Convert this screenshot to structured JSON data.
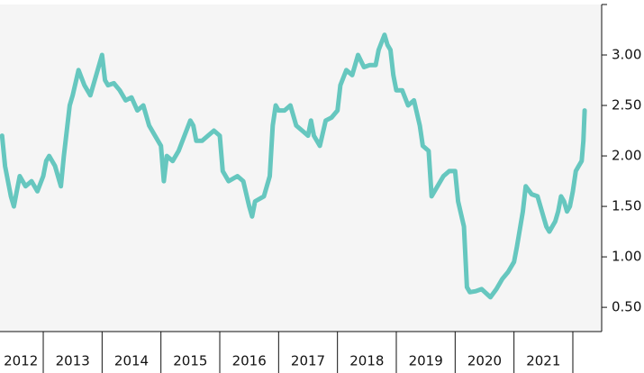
{
  "chart_data": {
    "type": "line",
    "x": [
      2012.3,
      2012.35,
      2012.45,
      2012.5,
      2012.55,
      2012.6,
      2012.7,
      2012.8,
      2012.9,
      2013.0,
      2013.05,
      2013.1,
      2013.2,
      2013.3,
      2013.35,
      2013.45,
      2013.5,
      2013.6,
      2013.7,
      2013.8,
      2013.9,
      2014.0,
      2014.05,
      2014.1,
      2014.2,
      2014.3,
      2014.4,
      2014.5,
      2014.6,
      2014.7,
      2014.8,
      2014.9,
      2015.0,
      2015.05,
      2015.1,
      2015.2,
      2015.3,
      2015.4,
      2015.5,
      2015.55,
      2015.6,
      2015.7,
      2015.8,
      2015.9,
      2016.0,
      2016.05,
      2016.15,
      2016.3,
      2016.4,
      2016.5,
      2016.55,
      2016.6,
      2016.75,
      2016.85,
      2016.9,
      2016.95,
      2017.0,
      2017.1,
      2017.2,
      2017.3,
      2017.4,
      2017.5,
      2017.55,
      2017.6,
      2017.7,
      2017.8,
      2017.9,
      2018.0,
      2018.05,
      2018.15,
      2018.25,
      2018.35,
      2018.45,
      2018.55,
      2018.65,
      2018.7,
      2018.8,
      2018.85,
      2018.9,
      2018.95,
      2019.0,
      2019.1,
      2019.2,
      2019.3,
      2019.4,
      2019.45,
      2019.55,
      2019.6,
      2019.7,
      2019.8,
      2019.9,
      2020.0,
      2020.05,
      2020.15,
      2020.2,
      2020.25,
      2020.35,
      2020.45,
      2020.6,
      2020.7,
      2020.8,
      2020.9,
      2021.0,
      2021.05,
      2021.15,
      2021.2,
      2021.3,
      2021.4,
      2021.5,
      2021.55,
      2021.6,
      2021.7,
      2021.75,
      2021.8,
      2021.85,
      2021.9,
      2021.95,
      2022.0,
      2022.05,
      2022.1,
      2022.15,
      2022.18,
      2022.2
    ],
    "values": [
      2.2,
      1.9,
      1.6,
      1.5,
      1.65,
      1.8,
      1.7,
      1.75,
      1.65,
      1.8,
      1.95,
      2.0,
      1.9,
      1.7,
      2.0,
      2.5,
      2.6,
      2.85,
      2.7,
      2.6,
      2.8,
      3.0,
      2.75,
      2.7,
      2.72,
      2.65,
      2.55,
      2.58,
      2.45,
      2.5,
      2.3,
      2.2,
      2.1,
      1.75,
      2.0,
      1.95,
      2.05,
      2.2,
      2.35,
      2.3,
      2.15,
      2.15,
      2.2,
      2.25,
      2.2,
      1.85,
      1.75,
      1.8,
      1.75,
      1.5,
      1.4,
      1.55,
      1.6,
      1.8,
      2.3,
      2.5,
      2.45,
      2.45,
      2.5,
      2.3,
      2.25,
      2.2,
      2.35,
      2.2,
      2.1,
      2.35,
      2.38,
      2.45,
      2.7,
      2.85,
      2.8,
      3.0,
      2.88,
      2.9,
      2.9,
      3.05,
      3.2,
      3.1,
      3.05,
      2.8,
      2.65,
      2.65,
      2.5,
      2.55,
      2.3,
      2.1,
      2.05,
      1.6,
      1.7,
      1.8,
      1.85,
      1.85,
      1.55,
      1.3,
      0.7,
      0.65,
      0.66,
      0.68,
      0.6,
      0.68,
      0.78,
      0.85,
      0.95,
      1.1,
      1.45,
      1.7,
      1.62,
      1.6,
      1.4,
      1.3,
      1.25,
      1.35,
      1.45,
      1.6,
      1.55,
      1.45,
      1.5,
      1.65,
      1.85,
      1.9,
      1.95,
      2.15,
      2.45
    ],
    "color": "#66c7bf",
    "xlim": [
      2012.265,
      2022.49
    ],
    "ylim": [
      0.26,
      3.5
    ],
    "yticks": [
      {
        "value": 0.5,
        "label": "0.50"
      },
      {
        "value": 1,
        "label": "1.00"
      },
      {
        "value": 1.5,
        "label": "1.50"
      },
      {
        "value": 2,
        "label": "2.00"
      },
      {
        "value": 2.5,
        "label": "2.50"
      },
      {
        "value": 3,
        "label": "3.00"
      }
    ],
    "xticks": [
      {
        "value": 2012.62,
        "label": "2012"
      },
      {
        "value": 2013.5,
        "label": "2013"
      },
      {
        "value": 2014.5,
        "label": "2014"
      },
      {
        "value": 2015.5,
        "label": "2015"
      },
      {
        "value": 2016.5,
        "label": "2016"
      },
      {
        "value": 2017.5,
        "label": "2017"
      },
      {
        "value": 2018.5,
        "label": "2018"
      },
      {
        "value": 2019.5,
        "label": "2019"
      },
      {
        "value": 2020.5,
        "label": "2020"
      },
      {
        "value": 2021.5,
        "label": "2021"
      }
    ],
    "xseparators": [
      2013,
      2014,
      2015,
      2016,
      2017,
      2018,
      2019,
      2020,
      2021,
      2022
    ]
  }
}
